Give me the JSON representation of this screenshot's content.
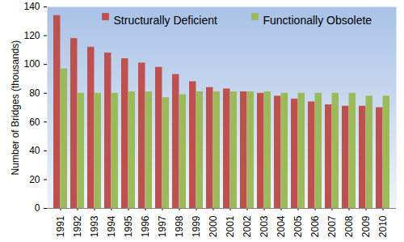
{
  "chart_data": {
    "type": "bar",
    "categories": [
      "1991",
      "1992",
      "1993",
      "1994",
      "1995",
      "1996",
      "1997",
      "1998",
      "1999",
      "2000",
      "2001",
      "2002",
      "2003",
      "2004",
      "2005",
      "2006",
      "2007",
      "2008",
      "2009",
      "2010"
    ],
    "series": [
      {
        "name": "Structurally Deficient",
        "color": "#c0504d",
        "values": [
          134,
          118,
          112,
          108,
          104,
          101,
          98,
          93,
          88,
          84,
          83,
          81,
          80,
          78,
          76,
          74,
          72,
          71,
          71,
          70
        ]
      },
      {
        "name": "Functionally Obsolete",
        "color": "#9bbb59",
        "values": [
          97,
          80,
          80,
          80,
          81,
          81,
          77,
          79,
          81,
          81,
          81,
          81,
          81,
          80,
          80,
          80,
          80,
          80,
          78,
          78
        ]
      }
    ],
    "y_label": "Number of Bridges (thousands)",
    "ylim": [
      0,
      140
    ],
    "yticks": [
      0,
      20,
      40,
      60,
      80,
      100,
      120,
      140
    ],
    "grid": false,
    "legend": "top-right"
  }
}
